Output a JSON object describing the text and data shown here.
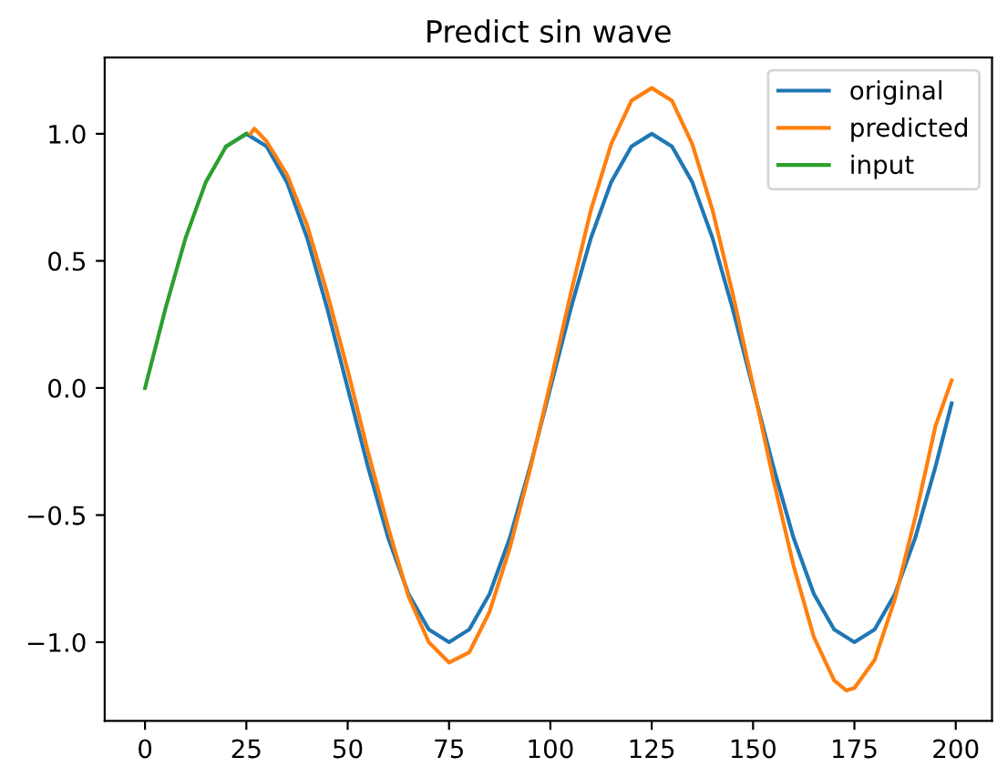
{
  "chart_data": {
    "type": "line",
    "title": "Predict sin wave",
    "xlim": [
      -9.95,
      208.95
    ],
    "ylim": [
      -1.31,
      1.3
    ],
    "xticks": [
      0,
      25,
      50,
      75,
      100,
      125,
      150,
      175,
      200
    ],
    "yticks": [
      {
        "value": -1.0,
        "label": "−1.0"
      },
      {
        "value": -0.5,
        "label": "−0.5"
      },
      {
        "value": 0.0,
        "label": "0.0"
      },
      {
        "value": 0.5,
        "label": "0.5"
      },
      {
        "value": 1.0,
        "label": "1.0"
      }
    ],
    "grid": false,
    "legend": "top right",
    "line_style": "solid",
    "marker": "none",
    "series": [
      {
        "name": "original",
        "color": "#1f77b4",
        "x": [
          20,
          25,
          30,
          35,
          40,
          45,
          50,
          55,
          60,
          65,
          70,
          75,
          80,
          85,
          90,
          95,
          100,
          105,
          110,
          115,
          120,
          125,
          130,
          135,
          140,
          145,
          150,
          155,
          160,
          165,
          170,
          175,
          180,
          185,
          190,
          195,
          199
        ],
        "values": [
          0.95,
          1.0,
          0.95,
          0.81,
          0.59,
          0.31,
          0,
          -0.31,
          -0.59,
          -0.81,
          -0.95,
          -1.0,
          -0.95,
          -0.81,
          -0.59,
          -0.31,
          0,
          0.31,
          0.59,
          0.81,
          0.95,
          1.0,
          0.95,
          0.81,
          0.59,
          0.31,
          0,
          -0.31,
          -0.59,
          -0.81,
          -0.95,
          -1.0,
          -0.95,
          -0.81,
          -0.59,
          -0.31,
          -0.06
        ]
      },
      {
        "name": "predicted",
        "color": "#ff7f0e",
        "x": [
          26,
          27,
          30,
          35,
          40,
          45,
          50,
          55,
          60,
          65,
          70,
          75,
          80,
          85,
          90,
          95,
          100,
          105,
          110,
          115,
          120,
          125,
          130,
          135,
          140,
          145,
          150,
          155,
          160,
          165,
          170,
          173,
          175,
          180,
          185,
          190,
          195,
          199
        ],
        "values": [
          1.0,
          1.02,
          0.97,
          0.84,
          0.64,
          0.37,
          0.07,
          -0.25,
          -0.55,
          -0.82,
          -1.0,
          -1.08,
          -1.04,
          -0.88,
          -0.63,
          -0.32,
          0.02,
          0.37,
          0.7,
          0.96,
          1.13,
          1.18,
          1.13,
          0.96,
          0.7,
          0.37,
          0.01,
          -0.36,
          -0.7,
          -0.98,
          -1.15,
          -1.19,
          -1.18,
          -1.07,
          -0.83,
          -0.51,
          -0.15,
          0.03
        ]
      },
      {
        "name": "input",
        "color": "#2ca02c",
        "x": [
          0,
          5,
          10,
          15,
          20,
          25
        ],
        "values": [
          0,
          0.31,
          0.59,
          0.81,
          0.95,
          1.0
        ]
      }
    ]
  }
}
